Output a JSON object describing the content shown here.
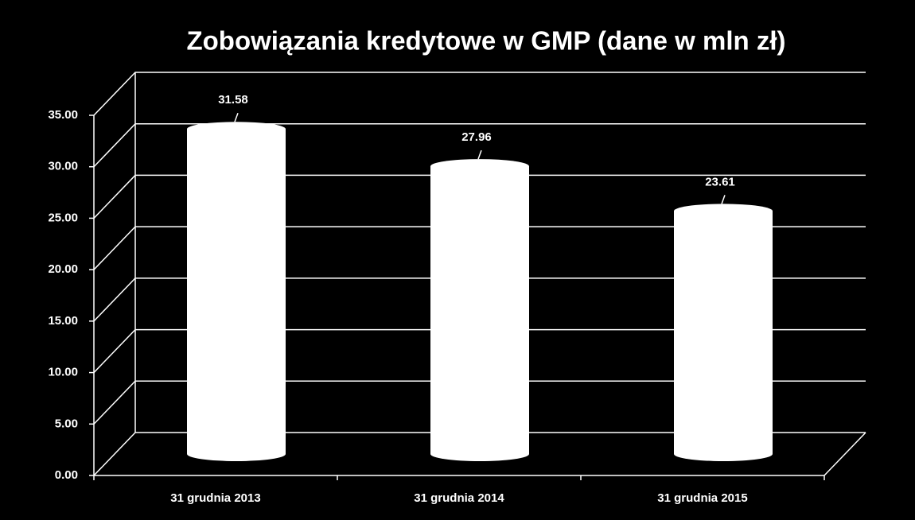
{
  "chart_data": {
    "type": "bar",
    "title": "Zobowiązania kredytowe w GMP (dane w mln zł)",
    "categories": [
      "31 grudnia 2013",
      "31 grudnia 2014",
      "31 grudnia 2015"
    ],
    "values": [
      31.58,
      27.96,
      23.61
    ],
    "color": "#ffffff",
    "ylim": [
      0,
      35
    ],
    "yticks": [
      {
        "value": 0,
        "label": "0.00"
      },
      {
        "value": 5,
        "label": "5.00"
      },
      {
        "value": 10,
        "label": "10.00"
      },
      {
        "value": 15,
        "label": "15.00"
      },
      {
        "value": 20,
        "label": "20.00"
      },
      {
        "value": 25,
        "label": "25.00"
      },
      {
        "value": 30,
        "label": "30.00"
      },
      {
        "value": 35,
        "label": "35.00"
      }
    ],
    "grid": true
  }
}
